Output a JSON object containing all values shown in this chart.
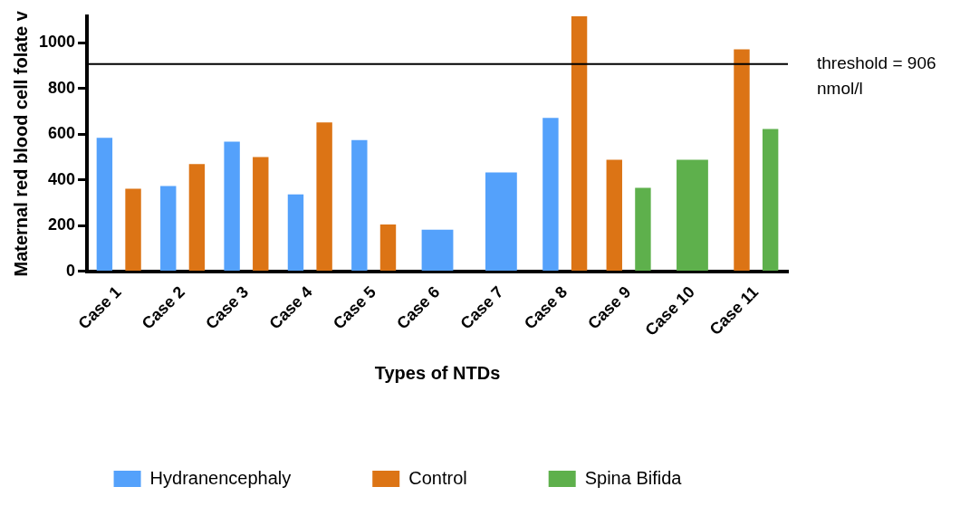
{
  "chart_data": {
    "type": "bar",
    "xlabel": "Types of NTDs",
    "ylabel": "Maternal red blood cell folate v",
    "categories": [
      "Case 1",
      "Case 2",
      "Case 3",
      "Case 4",
      "Case 5",
      "Case 6",
      "Case 7",
      "Case 8",
      "Case 9",
      "Case 10",
      "Case 11"
    ],
    "series": [
      {
        "name": "Hydranencephaly",
        "color": "#54a1fb",
        "values": [
          583,
          373,
          567,
          336,
          574,
          182,
          432,
          671,
          null,
          null,
          null
        ]
      },
      {
        "name": "Control",
        "color": "#dc7415",
        "values": [
          361,
          469,
          499,
          651,
          204,
          null,
          null,
          1115,
          487,
          null,
          970
        ]
      },
      {
        "name": "Spina Bifida",
        "color": "#5eb04c",
        "values": [
          null,
          null,
          null,
          null,
          null,
          null,
          null,
          null,
          365,
          487,
          622
        ]
      }
    ],
    "ylim": [
      0,
      1115
    ],
    "yticks": [
      0,
      200,
      400,
      600,
      800,
      1000
    ],
    "ref_lines": [
      {
        "axis": "y",
        "value": 906,
        "label": "threshold = 906 nmol/l",
        "color": "#000000"
      }
    ],
    "grid": false,
    "legend": "bottom"
  }
}
